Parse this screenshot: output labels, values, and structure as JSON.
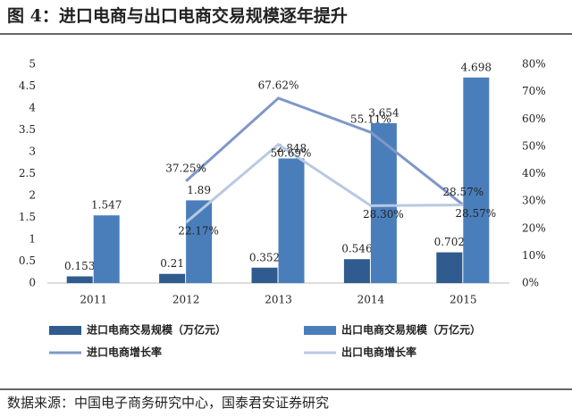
{
  "chart_data": {
    "type": "bar_line",
    "title": "图 4：进口电商与出口电商交易规模逐年提升",
    "source": "数据来源：中国电子商务研究中心，国泰君安证券研究",
    "categories": [
      "2011",
      "2012",
      "2013",
      "2014",
      "2015"
    ],
    "series": [
      {
        "name": "进口电商交易规模（万亿元）",
        "type": "bar",
        "color": "#2f5b8f",
        "values": [
          0.153,
          0.21,
          0.352,
          0.546,
          0.702
        ]
      },
      {
        "name": "出口电商交易规模（万亿元）",
        "type": "bar",
        "color": "#4a7ebb",
        "values": [
          1.547,
          1.89,
          2.848,
          3.654,
          4.698
        ]
      },
      {
        "name": "进口电商增长率",
        "type": "line",
        "axis": "y2",
        "color": "#7f97c8",
        "values": [
          null,
          37.25,
          67.62,
          55.11,
          28.57
        ],
        "value_labels": [
          null,
          "37.25%",
          "67.62%",
          "55.11%",
          "28.57%"
        ]
      },
      {
        "name": "出口电商增长率",
        "type": "line",
        "axis": "y2",
        "color": "#b9c9e2",
        "values": [
          null,
          22.17,
          50.69,
          28.3,
          28.57
        ],
        "value_labels": [
          null,
          "22.17%",
          "50.69%",
          "28.30%",
          "28.57%"
        ]
      }
    ],
    "ylim": [
      0,
      5
    ],
    "yticks": [
      0,
      0.5,
      1,
      1.5,
      2,
      2.5,
      3,
      3.5,
      4,
      4.5,
      5
    ],
    "y2lim": [
      0,
      80
    ],
    "y2ticks": [
      {
        "value": 0,
        "label": "0%"
      },
      {
        "value": 10,
        "label": "10%"
      },
      {
        "value": 20,
        "label": "20%"
      },
      {
        "value": 30,
        "label": "30%"
      },
      {
        "value": 40,
        "label": "40%"
      },
      {
        "value": 50,
        "label": "50%"
      },
      {
        "value": 60,
        "label": "60%"
      },
      {
        "value": 70,
        "label": "70%"
      },
      {
        "value": 80,
        "label": "80%"
      }
    ]
  }
}
